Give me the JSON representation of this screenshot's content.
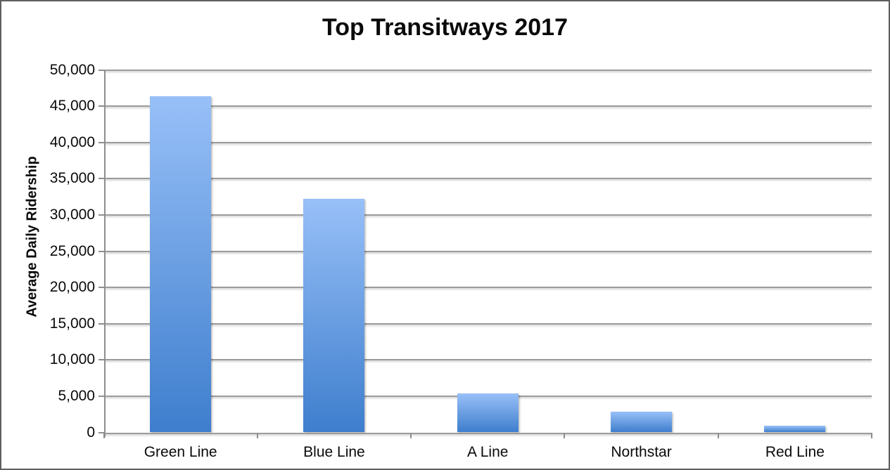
{
  "page": {
    "background": "#ffffff",
    "border_color": "#5e5e5e"
  },
  "chart_data": {
    "type": "bar",
    "title": "Top Transitways 2017",
    "ylabel": "Average Daily Ridership",
    "xlabel": "",
    "categories": [
      "Green Line",
      "Blue Line",
      "A Line",
      "Northstar",
      "Red Line"
    ],
    "values": [
      46400,
      32200,
      5400,
      2900,
      900
    ],
    "ylim": [
      0,
      50000
    ],
    "ytick_step": 5000,
    "yticklabels": [
      "0",
      "5,000",
      "10,000",
      "15,000",
      "20,000",
      "25,000",
      "30,000",
      "35,000",
      "40,000",
      "45,000",
      "50,000"
    ],
    "grid": true,
    "legend": "none",
    "colors": {
      "bar_gradient_top": "#98c0f8",
      "bar_gradient_bottom": "#3e7ecd",
      "gridline": "#9b9b9b",
      "axis": "#8e8e8e",
      "text": "#0a0a0a"
    }
  }
}
